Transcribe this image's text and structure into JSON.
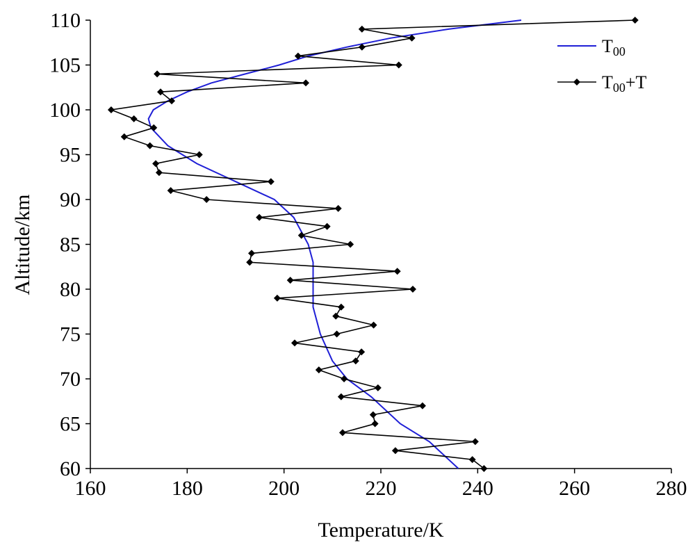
{
  "chart_data": {
    "type": "line",
    "title": "",
    "xlabel": "Temperature/K",
    "ylabel": "Altitude/km",
    "xlim": [
      160,
      280
    ],
    "ylim": [
      60,
      110
    ],
    "xticks": [
      160,
      180,
      200,
      220,
      240,
      260,
      280
    ],
    "yticks": [
      60,
      65,
      70,
      75,
      80,
      85,
      90,
      95,
      100,
      105,
      110
    ],
    "grid": false,
    "legend": {
      "placement": "top-right"
    },
    "series": [
      {
        "name": "T00",
        "label_main": "T",
        "label_sub": "00",
        "label_suffix": "",
        "color": "#1f1fd6",
        "marker": "none",
        "points": [
          [
            236,
            60
          ],
          [
            230,
            63
          ],
          [
            224,
            65
          ],
          [
            218,
            68
          ],
          [
            213,
            70
          ],
          [
            210,
            72
          ],
          [
            207.5,
            75
          ],
          [
            206,
            78
          ],
          [
            206,
            80
          ],
          [
            206,
            83
          ],
          [
            205,
            85
          ],
          [
            202,
            88
          ],
          [
            198,
            90
          ],
          [
            190,
            92
          ],
          [
            182,
            94
          ],
          [
            176,
            96
          ],
          [
            172.5,
            98
          ],
          [
            172,
            99
          ],
          [
            173,
            100
          ],
          [
            176,
            101
          ],
          [
            180,
            102
          ],
          [
            185,
            103
          ],
          [
            192,
            104
          ],
          [
            199,
            105
          ],
          [
            205,
            106
          ],
          [
            213,
            107
          ],
          [
            222,
            108
          ],
          [
            234,
            109
          ],
          [
            249,
            110
          ]
        ]
      },
      {
        "name": "T00+T",
        "label_main": "T",
        "label_sub": "00",
        "label_suffix": "+T",
        "color": "#000000",
        "marker": "plus-diamond",
        "points": [
          [
            241.3,
            60
          ],
          [
            238.9,
            61
          ],
          [
            223.0,
            62
          ],
          [
            239.5,
            63
          ],
          [
            212.1,
            64
          ],
          [
            218.8,
            65
          ],
          [
            218.4,
            66
          ],
          [
            228.6,
            67
          ],
          [
            211.8,
            68
          ],
          [
            219.4,
            69
          ],
          [
            212.4,
            70
          ],
          [
            207.2,
            71
          ],
          [
            214.8,
            72
          ],
          [
            216.0,
            73
          ],
          [
            202.2,
            74
          ],
          [
            210.9,
            75
          ],
          [
            218.5,
            76
          ],
          [
            210.7,
            77
          ],
          [
            211.8,
            78
          ],
          [
            198.6,
            79
          ],
          [
            226.6,
            80
          ],
          [
            201.3,
            81
          ],
          [
            223.4,
            82
          ],
          [
            192.9,
            83
          ],
          [
            193.3,
            84
          ],
          [
            213.7,
            85
          ],
          [
            203.6,
            86
          ],
          [
            208.9,
            87
          ],
          [
            194.9,
            88
          ],
          [
            211.2,
            89
          ],
          [
            184.0,
            90
          ],
          [
            176.6,
            91
          ],
          [
            197.3,
            92
          ],
          [
            174.2,
            93
          ],
          [
            173.5,
            94
          ],
          [
            182.5,
            95
          ],
          [
            172.3,
            96
          ],
          [
            167.0,
            97
          ],
          [
            173.1,
            98
          ],
          [
            169.0,
            99
          ],
          [
            164.3,
            100
          ],
          [
            176.8,
            101
          ],
          [
            174.5,
            102
          ],
          [
            204.5,
            103
          ],
          [
            173.8,
            104
          ],
          [
            223.7,
            105
          ],
          [
            202.9,
            106
          ],
          [
            216.1,
            107
          ],
          [
            226.4,
            108
          ],
          [
            216.1,
            109
          ],
          [
            272.5,
            110
          ]
        ]
      }
    ]
  }
}
